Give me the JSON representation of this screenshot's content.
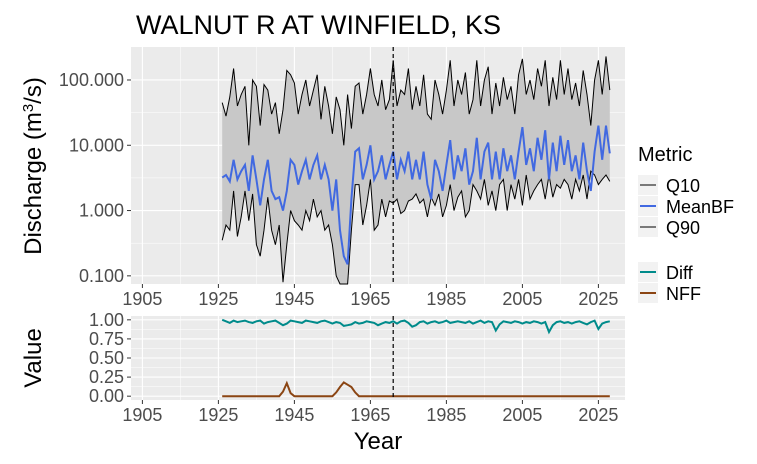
{
  "chart_data": [
    {
      "type": "area",
      "title": "WALNUT R AT WINFIELD, KS",
      "ylabel_main": "Discharge (m",
      "ylabel_sup": "3",
      "ylabel_tail": "/s)",
      "xlabel": "",
      "xlim": [
        1902,
        2032
      ],
      "ylim": [
        0.075,
        320
      ],
      "y_scale": "log10",
      "x_ticks": [
        1905,
        1925,
        1945,
        1965,
        1985,
        2005,
        2025
      ],
      "y_ticks": [
        0.1,
        1,
        10,
        100
      ],
      "y_tick_labels": [
        "0.100",
        "1.000",
        "10.000",
        "100.000"
      ],
      "vline_x": 1971,
      "grid": true,
      "legend_title": "Metric",
      "legend_position": "right",
      "series": [
        {
          "name": "Q10",
          "color": "#000000"
        },
        {
          "name": "MeanBF",
          "color": "#4169E1"
        },
        {
          "name": "Q90",
          "color": "#000000"
        }
      ],
      "x": [
        1926,
        1927,
        1928,
        1929,
        1930,
        1931,
        1932,
        1933,
        1934,
        1935,
        1936,
        1937,
        1938,
        1939,
        1940,
        1941,
        1942,
        1943,
        1944,
        1945,
        1946,
        1947,
        1948,
        1949,
        1950,
        1951,
        1952,
        1953,
        1954,
        1955,
        1956,
        1957,
        1958,
        1959,
        1960,
        1961,
        1962,
        1963,
        1964,
        1965,
        1966,
        1967,
        1968,
        1969,
        1970,
        1971,
        1972,
        1973,
        1974,
        1975,
        1976,
        1977,
        1978,
        1979,
        1980,
        1981,
        1982,
        1983,
        1984,
        1985,
        1986,
        1987,
        1988,
        1989,
        1990,
        1991,
        1992,
        1993,
        1994,
        1995,
        1996,
        1997,
        1998,
        1999,
        2000,
        2001,
        2002,
        2003,
        2004,
        2005,
        2006,
        2007,
        2008,
        2009,
        2010,
        2011,
        2012,
        2013,
        2014,
        2015,
        2016,
        2017,
        2018,
        2019,
        2020,
        2021,
        2022,
        2023,
        2024,
        2025,
        2026,
        2027,
        2028
      ],
      "q90": [
        45,
        28,
        55,
        150,
        40,
        60,
        80,
        10,
        100,
        80,
        20,
        85,
        70,
        30,
        45,
        15,
        35,
        140,
        120,
        90,
        30,
        60,
        100,
        40,
        70,
        120,
        25,
        80,
        40,
        15,
        55,
        35,
        10,
        60,
        18,
        80,
        90,
        30,
        60,
        150,
        60,
        40,
        100,
        35,
        50,
        200,
        40,
        70,
        60,
        150,
        35,
        80,
        40,
        120,
        30,
        25,
        100,
        60,
        30,
        70,
        200,
        40,
        100,
        60,
        130,
        30,
        50,
        200,
        40,
        100,
        160,
        30,
        90,
        40,
        110,
        50,
        80,
        30,
        120,
        210,
        60,
        100,
        50,
        150,
        80,
        200,
        40,
        110,
        50,
        200,
        60,
        150,
        50,
        90,
        40,
        140,
        60,
        20,
        100,
        200,
        60,
        230,
        70
      ],
      "q10": [
        0.35,
        0.6,
        0.5,
        2.0,
        0.4,
        0.8,
        2.0,
        0.7,
        1.8,
        0.3,
        0.2,
        0.5,
        1.6,
        0.5,
        0.3,
        0.6,
        0.08,
        0.3,
        1.0,
        0.7,
        0.6,
        0.5,
        1.0,
        0.7,
        1.5,
        0.8,
        1.0,
        0.5,
        0.6,
        0.3,
        0.1,
        0.05,
        0.05,
        0.05,
        0.5,
        2.5,
        2.5,
        0.6,
        1.2,
        3.0,
        0.5,
        0.6,
        1.5,
        0.8,
        1.4,
        1.3,
        1.5,
        0.9,
        1.0,
        1.4,
        1.5,
        1.8,
        1.3,
        1.5,
        0.8,
        1.6,
        1.2,
        1.8,
        0.8,
        1.2,
        2.5,
        1.0,
        1.6,
        2.0,
        0.8,
        1.0,
        2.5,
        2.0,
        1.5,
        3.0,
        1.2,
        2.0,
        1.0,
        2.5,
        3.0,
        1.0,
        2.5,
        1.5,
        3.0,
        1.2,
        3.5,
        1.5,
        2.0,
        2.5,
        3.0,
        1.5,
        3.5,
        1.6,
        2.5,
        2.2,
        3.0,
        2.5,
        1.5,
        3.0,
        2.0,
        3.5,
        1.5,
        4.0,
        3.5,
        2.5,
        3.0,
        3.5,
        2.8
      ],
      "meanbf": [
        3.2,
        3.5,
        2.8,
        6.0,
        3.0,
        4.0,
        5.0,
        2.0,
        7.0,
        3.0,
        1.2,
        3.0,
        6.0,
        2.0,
        1.5,
        1.6,
        1.0,
        2.0,
        6.0,
        5.0,
        2.5,
        4.0,
        6.0,
        3.0,
        5.0,
        7.0,
        3.0,
        5.0,
        3.0,
        1.0,
        3.0,
        0.5,
        0.2,
        0.15,
        1.5,
        8.0,
        9.0,
        3.0,
        5.0,
        10.0,
        3.0,
        4.0,
        7.0,
        3.0,
        5.0,
        8.0,
        3.0,
        6.0,
        4.0,
        8.0,
        3.0,
        6.0,
        3.0,
        8.0,
        2.5,
        1.5,
        6.0,
        4.0,
        2.0,
        5.0,
        12.0,
        3.0,
        7.0,
        4.0,
        9.0,
        2.5,
        4.0,
        13.0,
        3.0,
        8.0,
        11.0,
        3.0,
        8.0,
        3.0,
        9.0,
        4.0,
        7.0,
        3.0,
        8.0,
        19.0,
        5.0,
        9.0,
        4.0,
        13.0,
        6.0,
        17.0,
        3.0,
        11.0,
        4.0,
        14.0,
        5.0,
        12.0,
        4.0,
        7.0,
        3.0,
        11.0,
        4.0,
        2.0,
        8.0,
        20.0,
        6.0,
        20.0,
        7.5
      ]
    },
    {
      "type": "line",
      "ylabel": "Value",
      "xlabel": "Year",
      "xlim": [
        1902,
        2032
      ],
      "ylim": [
        -0.05,
        1.05
      ],
      "x_ticks": [
        1905,
        1925,
        1945,
        1965,
        1985,
        2005,
        2025
      ],
      "y_ticks": [
        0,
        0.25,
        0.5,
        0.75,
        1
      ],
      "y_tick_labels": [
        "0.00",
        "0.25",
        "0.50",
        "0.75",
        "1.00"
      ],
      "vline_x": 1971,
      "grid": true,
      "legend_position": "right",
      "series": [
        {
          "name": "Diff",
          "color": "#008B8B",
          "values": [
            1.0,
            0.98,
            0.96,
            0.99,
            0.97,
            0.98,
            0.99,
            0.97,
            0.96,
            0.98,
            0.99,
            0.95,
            0.97,
            0.98,
            0.99,
            0.96,
            0.93,
            0.95,
            0.99,
            0.98,
            0.97,
            0.96,
            0.99,
            0.98,
            0.97,
            0.96,
            0.98,
            0.99,
            0.97,
            0.95,
            0.97,
            0.96,
            0.92,
            0.93,
            0.94,
            0.97,
            0.95,
            0.96,
            0.98,
            0.97,
            0.96,
            0.93,
            0.95,
            0.97,
            0.96,
            0.98,
            0.95,
            0.98,
            0.99,
            0.96,
            0.91,
            0.93,
            0.97,
            0.98,
            0.95,
            0.97,
            0.98,
            0.96,
            0.97,
            0.99,
            0.96,
            0.97,
            0.98,
            0.97,
            0.96,
            0.98,
            0.95,
            0.97,
            0.99,
            0.96,
            0.98,
            0.97,
            0.86,
            0.94,
            0.98,
            0.97,
            0.96,
            0.98,
            0.97,
            0.95,
            0.97,
            0.96,
            0.98,
            0.97,
            0.95,
            0.97,
            0.84,
            0.93,
            0.97,
            0.98,
            0.96,
            0.97,
            0.95,
            0.97,
            0.98,
            0.96,
            0.94,
            0.97,
            0.99,
            0.88,
            0.95,
            0.97,
            0.98
          ]
        },
        {
          "name": "NFF",
          "color": "#8B4513",
          "values": [
            0,
            0,
            0,
            0,
            0,
            0,
            0,
            0,
            0,
            0,
            0,
            0,
            0,
            0,
            0,
            0,
            0.06,
            0.17,
            0.04,
            0,
            0,
            0,
            0,
            0,
            0,
            0,
            0,
            0,
            0,
            0,
            0.05,
            0.12,
            0.18,
            0.15,
            0.12,
            0.05,
            0,
            0,
            0,
            0,
            0,
            0,
            0,
            0,
            0,
            0,
            0,
            0,
            0,
            0,
            0,
            0,
            0,
            0,
            0,
            0,
            0,
            0,
            0,
            0,
            0,
            0,
            0,
            0,
            0,
            0,
            0,
            0,
            0,
            0,
            0,
            0,
            0,
            0,
            0,
            0,
            0,
            0,
            0,
            0,
            0,
            0,
            0,
            0,
            0,
            0,
            0,
            0,
            0,
            0,
            0,
            0,
            0,
            0,
            0,
            0,
            0,
            0,
            0,
            0,
            0,
            0,
            0
          ]
        }
      ]
    }
  ]
}
